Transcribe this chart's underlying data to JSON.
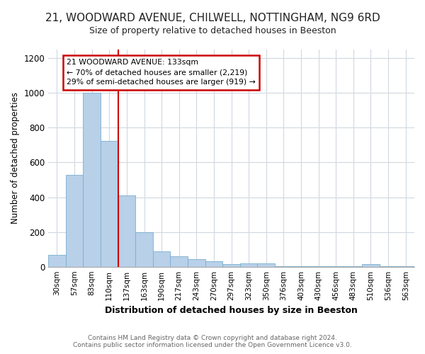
{
  "title_line1": "21, WOODWARD AVENUE, CHILWELL, NOTTINGHAM, NG9 6RD",
  "title_line2": "Size of property relative to detached houses in Beeston",
  "xlabel": "Distribution of detached houses by size in Beeston",
  "ylabel": "Number of detached properties",
  "categories": [
    "30sqm",
    "57sqm",
    "83sqm",
    "110sqm",
    "137sqm",
    "163sqm",
    "190sqm",
    "217sqm",
    "243sqm",
    "270sqm",
    "297sqm",
    "323sqm",
    "350sqm",
    "376sqm",
    "403sqm",
    "430sqm",
    "456sqm",
    "483sqm",
    "510sqm",
    "536sqm",
    "563sqm"
  ],
  "values": [
    70,
    530,
    1000,
    725,
    410,
    198,
    88,
    58,
    42,
    32,
    15,
    20,
    18,
    2,
    2,
    2,
    2,
    2,
    15,
    2,
    2
  ],
  "bar_color": "#b8d0e8",
  "bar_edge_color": "#7aaed0",
  "vline_x_index": 4,
  "vline_color": "#cc0000",
  "annotation_line1": "21 WOODWARD AVENUE: 133sqm",
  "annotation_line2": "← 70% of detached houses are smaller (2,219)",
  "annotation_line3": "29% of semi-detached houses are larger (919) →",
  "annotation_box_color": "#ffffff",
  "annotation_box_edge_color": "#cc0000",
  "ylim": [
    0,
    1250
  ],
  "yticks": [
    0,
    200,
    400,
    600,
    800,
    1000,
    1200
  ],
  "footer_text": "Contains HM Land Registry data © Crown copyright and database right 2024.\nContains public sector information licensed under the Open Government Licence v3.0.",
  "background_color": "#ffffff",
  "grid_color": "#d0d8e0",
  "title1_fontsize": 11,
  "title2_fontsize": 9
}
